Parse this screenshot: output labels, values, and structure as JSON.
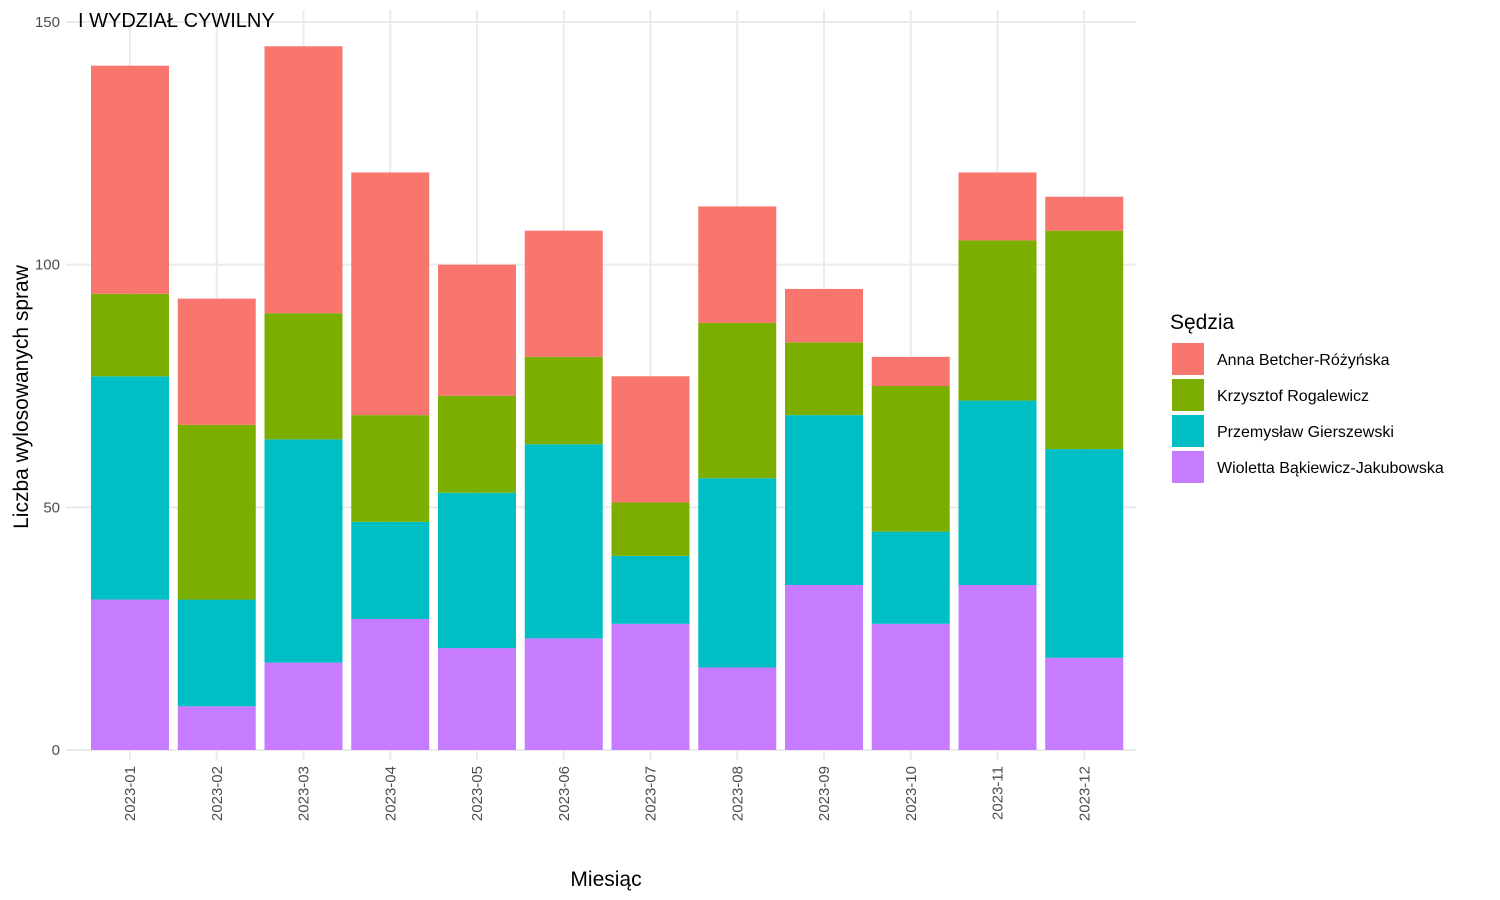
{
  "chart_data": {
    "type": "bar",
    "stacked": true,
    "title": "I WYDZIAŁ CYWILNY",
    "xlabel": "Miesiąc",
    "ylabel": "Liczba wylosowanych spraw",
    "ylim": [
      0,
      150
    ],
    "yticks": [
      0,
      50,
      100,
      150
    ],
    "grid": true,
    "legend_title": "Sędzia",
    "legend_position": "right",
    "categories": [
      "2023-01",
      "2023-02",
      "2023-03",
      "2023-04",
      "2023-05",
      "2023-06",
      "2023-07",
      "2023-08",
      "2023-09",
      "2023-10",
      "2023-11",
      "2023-12"
    ],
    "series": [
      {
        "name": "Anna Betcher-Różyńska",
        "color": "#F8766D",
        "values": [
          47,
          26,
          55,
          50,
          27,
          26,
          26,
          24,
          11,
          6,
          14,
          7
        ]
      },
      {
        "name": "Krzysztof Rogalewicz",
        "color": "#7CAE00",
        "values": [
          17,
          36,
          26,
          22,
          20,
          18,
          11,
          32,
          15,
          30,
          33,
          45
        ]
      },
      {
        "name": "Przemysław Gierszewski",
        "color": "#00BFC4",
        "values": [
          46,
          22,
          46,
          20,
          32,
          40,
          14,
          39,
          35,
          19,
          38,
          43
        ]
      },
      {
        "name": "Wioletta Bąkiewicz-Jakubowska",
        "color": "#C77CFF",
        "values": [
          31,
          9,
          18,
          27,
          21,
          23,
          26,
          17,
          34,
          26,
          34,
          19
        ]
      }
    ]
  }
}
